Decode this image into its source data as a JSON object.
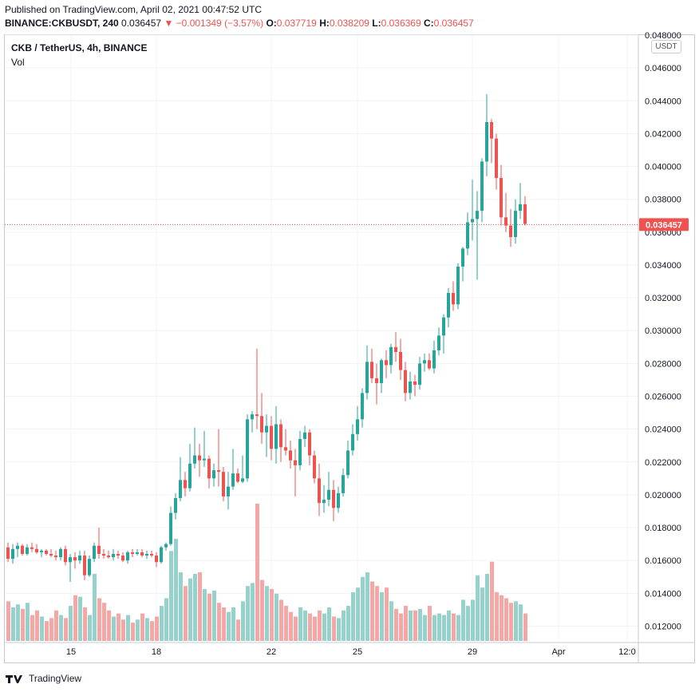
{
  "header": {
    "published": "Published on TradingView.com, April 02, 2021 00:47:52 UTC",
    "symbol": "BINANCE:CKBUSDT, 240",
    "last": "0.036457",
    "change": "−0.001349 (−3.57%)",
    "open_label": "O:",
    "open": "0.037719",
    "high_label": "H:",
    "high": "0.038209",
    "low_label": "L:",
    "low": "0.036369",
    "close_label": "C:",
    "close": "0.036457"
  },
  "pane": {
    "title": "CKB / TetherUS, 4h, BINANCE",
    "volume_label": "Vol",
    "currency_badge": "USDT"
  },
  "footer": {
    "brand": "TradingView"
  },
  "colors": {
    "up": "#26a69a",
    "down": "#ef5350",
    "up_vol": "#95d2cc",
    "down_vol": "#f4a7a5",
    "grid": "#f0f3fa"
  },
  "chart_data": {
    "type": "candlestick",
    "title": "CKB / TetherUS, 4h, BINANCE",
    "xlabel": "",
    "ylabel": "",
    "y_axis": {
      "range": [
        0.0111,
        0.048
      ],
      "ticks": [
        "0.048000",
        "0.046000",
        "0.044000",
        "0.042000",
        "0.040000",
        "0.038000",
        "0.036000",
        "0.034000",
        "0.032000",
        "0.030000",
        "0.028000",
        "0.026000",
        "0.024000",
        "0.022000",
        "0.020000",
        "0.018000",
        "0.016000",
        "0.014000",
        "0.012000"
      ],
      "last_price_label": "0.036457",
      "last_price": 0.036457
    },
    "x_axis": {
      "tick_labels": [
        "15",
        "18",
        "22",
        "25",
        "29",
        "Apr",
        "12:0"
      ]
    },
    "grid": true,
    "series": [
      {
        "name": "Price",
        "ohlc": [
          [
            0.0168,
            0.0171,
            0.0159,
            0.0161
          ],
          [
            0.0161,
            0.017,
            0.0158,
            0.0167
          ],
          [
            0.0167,
            0.0171,
            0.0162,
            0.0169
          ],
          [
            0.0169,
            0.017,
            0.0163,
            0.0164
          ],
          [
            0.0164,
            0.017,
            0.0163,
            0.0168
          ],
          [
            0.0168,
            0.0171,
            0.0165,
            0.0167
          ],
          [
            0.0167,
            0.017,
            0.0164,
            0.0165
          ],
          [
            0.0165,
            0.0167,
            0.0162,
            0.0166
          ],
          [
            0.0166,
            0.0167,
            0.0163,
            0.0164
          ],
          [
            0.0164,
            0.0167,
            0.0162,
            0.0163
          ],
          [
            0.0163,
            0.0166,
            0.016,
            0.0162
          ],
          [
            0.0162,
            0.0168,
            0.016,
            0.0167
          ],
          [
            0.0167,
            0.0169,
            0.0157,
            0.0159
          ],
          [
            0.0159,
            0.0164,
            0.0147,
            0.0162
          ],
          [
            0.0162,
            0.0165,
            0.0155,
            0.016
          ],
          [
            0.016,
            0.0166,
            0.0158,
            0.0163
          ],
          [
            0.0163,
            0.0166,
            0.0148,
            0.0151
          ],
          [
            0.0151,
            0.0163,
            0.015,
            0.0161
          ],
          [
            0.0161,
            0.0171,
            0.0159,
            0.0169
          ],
          [
            0.0169,
            0.018,
            0.0161,
            0.0164
          ],
          [
            0.0164,
            0.0167,
            0.0161,
            0.0163
          ],
          [
            0.0163,
            0.0166,
            0.0161,
            0.0162
          ],
          [
            0.0162,
            0.0167,
            0.016,
            0.0164
          ],
          [
            0.0164,
            0.0166,
            0.0161,
            0.0163
          ],
          [
            0.0163,
            0.0165,
            0.0159,
            0.016
          ],
          [
            0.016,
            0.0166,
            0.0158,
            0.0165
          ],
          [
            0.0165,
            0.0167,
            0.0162,
            0.0164
          ],
          [
            0.0164,
            0.0167,
            0.0163,
            0.0165
          ],
          [
            0.0165,
            0.0167,
            0.0162,
            0.0163
          ],
          [
            0.0163,
            0.0166,
            0.0161,
            0.0164
          ],
          [
            0.0164,
            0.0166,
            0.0162,
            0.0163
          ],
          [
            0.0163,
            0.0165,
            0.0156,
            0.0159
          ],
          [
            0.0159,
            0.0169,
            0.0158,
            0.0168
          ],
          [
            0.0168,
            0.0171,
            0.0166,
            0.017
          ],
          [
            0.017,
            0.0193,
            0.0169,
            0.0189
          ],
          [
            0.0189,
            0.0201,
            0.0185,
            0.0198
          ],
          [
            0.0198,
            0.0223,
            0.0196,
            0.0209
          ],
          [
            0.0209,
            0.0214,
            0.0199,
            0.0204
          ],
          [
            0.0204,
            0.0231,
            0.0202,
            0.0219
          ],
          [
            0.0219,
            0.0241,
            0.0216,
            0.0224
          ],
          [
            0.0224,
            0.0231,
            0.0211,
            0.0221
          ],
          [
            0.0221,
            0.0239,
            0.0217,
            0.0222
          ],
          [
            0.0222,
            0.0224,
            0.0204,
            0.021
          ],
          [
            0.021,
            0.0219,
            0.0205,
            0.0215
          ],
          [
            0.0215,
            0.024,
            0.0205,
            0.0214
          ],
          [
            0.0214,
            0.0217,
            0.0196,
            0.0199
          ],
          [
            0.0199,
            0.0214,
            0.0191,
            0.0205
          ],
          [
            0.0205,
            0.0228,
            0.0203,
            0.0213
          ],
          [
            0.0213,
            0.0216,
            0.0207,
            0.0208
          ],
          [
            0.0208,
            0.0224,
            0.0207,
            0.021
          ],
          [
            0.021,
            0.0249,
            0.0208,
            0.0246
          ],
          [
            0.0246,
            0.0251,
            0.0238,
            0.0249
          ],
          [
            0.0249,
            0.0289,
            0.024,
            0.0248
          ],
          [
            0.0248,
            0.0262,
            0.0231,
            0.0238
          ],
          [
            0.0238,
            0.0249,
            0.0223,
            0.0242
          ],
          [
            0.0242,
            0.0248,
            0.0221,
            0.0228
          ],
          [
            0.0228,
            0.0254,
            0.0219,
            0.0243
          ],
          [
            0.0243,
            0.0246,
            0.022,
            0.0229
          ],
          [
            0.0229,
            0.024,
            0.0224,
            0.0227
          ],
          [
            0.0227,
            0.0233,
            0.0216,
            0.0221
          ],
          [
            0.0221,
            0.0228,
            0.0199,
            0.0218
          ],
          [
            0.0218,
            0.0239,
            0.0215,
            0.0234
          ],
          [
            0.0234,
            0.0242,
            0.0229,
            0.0238
          ],
          [
            0.0238,
            0.024,
            0.0218,
            0.0224
          ],
          [
            0.0224,
            0.0227,
            0.0207,
            0.021
          ],
          [
            0.021,
            0.0219,
            0.0187,
            0.0195
          ],
          [
            0.0195,
            0.0206,
            0.0189,
            0.0197
          ],
          [
            0.0197,
            0.0214,
            0.0193,
            0.0203
          ],
          [
            0.0203,
            0.0209,
            0.0184,
            0.0192
          ],
          [
            0.0192,
            0.0205,
            0.0189,
            0.0201
          ],
          [
            0.0201,
            0.0216,
            0.0199,
            0.0212
          ],
          [
            0.0212,
            0.0233,
            0.021,
            0.0227
          ],
          [
            0.0227,
            0.0243,
            0.0224,
            0.0237
          ],
          [
            0.0237,
            0.0254,
            0.0233,
            0.0246
          ],
          [
            0.0246,
            0.0265,
            0.0241,
            0.0262
          ],
          [
            0.0262,
            0.0291,
            0.0258,
            0.0281
          ],
          [
            0.0281,
            0.0289,
            0.0268,
            0.0271
          ],
          [
            0.0271,
            0.028,
            0.0255,
            0.0268
          ],
          [
            0.0268,
            0.0283,
            0.0262,
            0.0282
          ],
          [
            0.0282,
            0.0288,
            0.0271,
            0.0279
          ],
          [
            0.0279,
            0.0292,
            0.0274,
            0.029
          ],
          [
            0.029,
            0.0299,
            0.0281,
            0.0287
          ],
          [
            0.0287,
            0.0295,
            0.027,
            0.0276
          ],
          [
            0.0276,
            0.0281,
            0.0257,
            0.0262
          ],
          [
            0.0262,
            0.0275,
            0.0258,
            0.0269
          ],
          [
            0.0269,
            0.0273,
            0.026,
            0.0267
          ],
          [
            0.0267,
            0.0284,
            0.0264,
            0.028
          ],
          [
            0.028,
            0.0286,
            0.0275,
            0.0282
          ],
          [
            0.0282,
            0.0286,
            0.0276,
            0.0277
          ],
          [
            0.0277,
            0.0294,
            0.0274,
            0.0288
          ],
          [
            0.0288,
            0.0302,
            0.0285,
            0.0297
          ],
          [
            0.0297,
            0.031,
            0.0286,
            0.0308
          ],
          [
            0.0308,
            0.0326,
            0.0302,
            0.0323
          ],
          [
            0.0323,
            0.033,
            0.0312,
            0.0316
          ],
          [
            0.0316,
            0.0341,
            0.0313,
            0.0339
          ],
          [
            0.0339,
            0.0351,
            0.033,
            0.035
          ],
          [
            0.035,
            0.0372,
            0.0346,
            0.0366
          ],
          [
            0.0366,
            0.0392,
            0.0355,
            0.0368
          ],
          [
            0.0368,
            0.0385,
            0.0331,
            0.0373
          ],
          [
            0.0373,
            0.0405,
            0.0366,
            0.0403
          ],
          [
            0.0403,
            0.0444,
            0.0394,
            0.0427
          ],
          [
            0.0427,
            0.0429,
            0.0402,
            0.0417
          ],
          [
            0.0417,
            0.042,
            0.0386,
            0.0393
          ],
          [
            0.0393,
            0.0401,
            0.0364,
            0.0369
          ],
          [
            0.0369,
            0.0384,
            0.036,
            0.0364
          ],
          [
            0.0364,
            0.0374,
            0.0351,
            0.0357
          ],
          [
            0.0357,
            0.038,
            0.0353,
            0.0373
          ],
          [
            0.0373,
            0.039,
            0.0368,
            0.0377
          ],
          [
            0.0377,
            0.0382,
            0.0364,
            0.0365
          ]
        ]
      },
      {
        "name": "Vol",
        "values": [
          0.26,
          0.22,
          0.24,
          0.21,
          0.25,
          0.17,
          0.2,
          0.16,
          0.13,
          0.15,
          0.2,
          0.17,
          0.15,
          0.23,
          0.3,
          0.29,
          0.22,
          0.17,
          0.44,
          0.28,
          0.25,
          0.2,
          0.16,
          0.18,
          0.14,
          0.17,
          0.12,
          0.14,
          0.18,
          0.15,
          0.13,
          0.16,
          0.23,
          0.28,
          0.59,
          0.67,
          0.45,
          0.36,
          0.41,
          0.44,
          0.45,
          0.34,
          0.31,
          0.33,
          0.25,
          0.22,
          0.19,
          0.22,
          0.14,
          0.26,
          0.36,
          0.38,
          0.9,
          0.4,
          0.36,
          0.34,
          0.31,
          0.27,
          0.23,
          0.19,
          0.16,
          0.22,
          0.2,
          0.18,
          0.16,
          0.2,
          0.18,
          0.22,
          0.16,
          0.15,
          0.2,
          0.23,
          0.32,
          0.35,
          0.42,
          0.45,
          0.39,
          0.36,
          0.32,
          0.35,
          0.26,
          0.21,
          0.18,
          0.23,
          0.2,
          0.2,
          0.21,
          0.17,
          0.23,
          0.17,
          0.18,
          0.17,
          0.2,
          0.18,
          0.17,
          0.27,
          0.23,
          0.27,
          0.43,
          0.35,
          0.44,
          0.52,
          0.32,
          0.3,
          0.28,
          0.25,
          0.26,
          0.24,
          0.18,
          0.07
        ]
      }
    ],
    "volume_scale_max": 1.0
  }
}
